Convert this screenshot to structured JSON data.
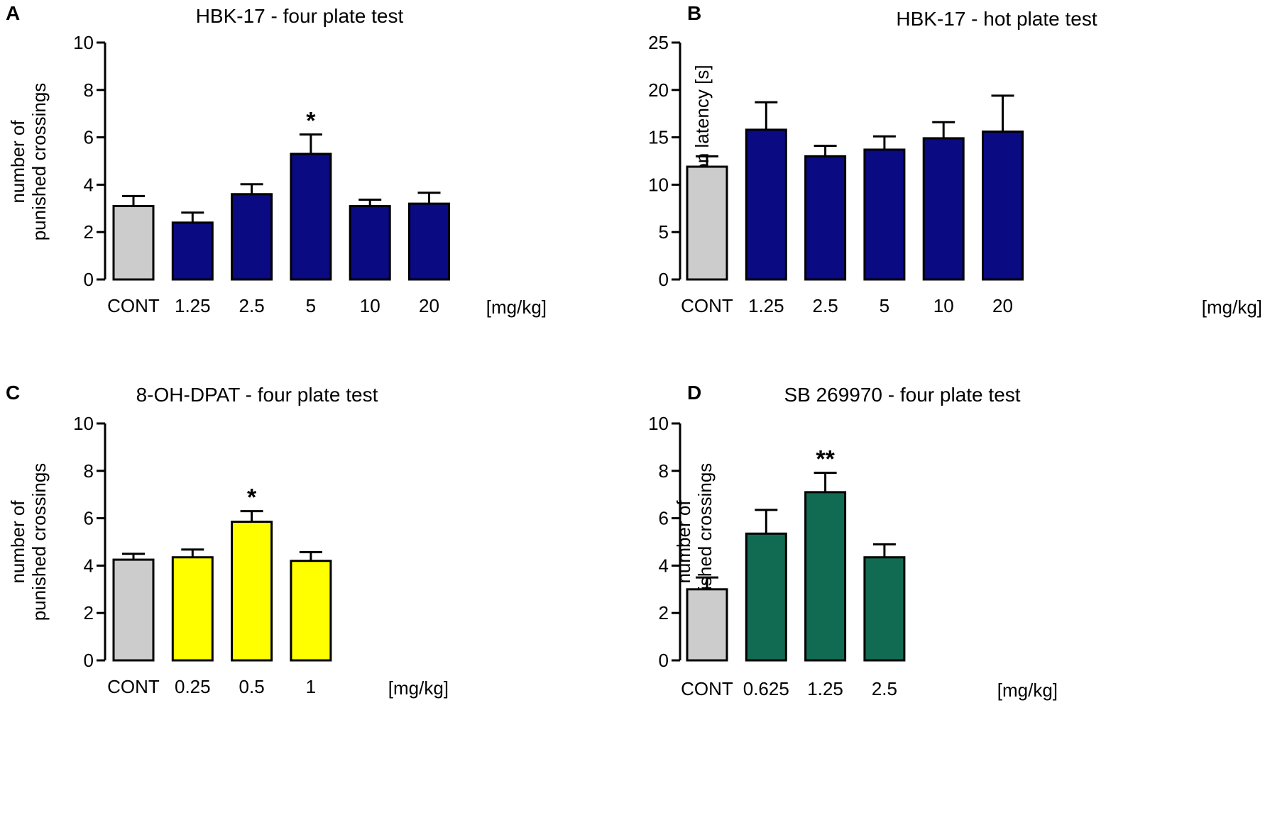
{
  "chart_data": [
    {
      "panel": "A",
      "type": "bar",
      "title": "HBK-17 - four plate test",
      "ylabel": [
        "number of",
        "punished crossings"
      ],
      "xunit": "[mg/kg]",
      "categories": [
        "CONT",
        "1.25",
        "2.5",
        "5",
        "10",
        "20"
      ],
      "values": [
        3.1,
        2.4,
        3.6,
        5.3,
        3.1,
        3.2
      ],
      "errors": [
        0.42,
        0.42,
        0.42,
        0.82,
        0.27,
        0.46
      ],
      "significance": [
        "",
        "",
        "",
        "*",
        "",
        ""
      ],
      "colors": [
        "#cccccc",
        "#0a0a82",
        "#0a0a82",
        "#0a0a82",
        "#0a0a82",
        "#0a0a82"
      ],
      "ylim": [
        0,
        10
      ],
      "yticks": [
        "0",
        "2",
        "4",
        "6",
        "8",
        "10"
      ]
    },
    {
      "panel": "B",
      "type": "bar",
      "title": "HBK-17 - hot plate test",
      "ylabel": [
        "pain reaction latency [s]"
      ],
      "xunit": "[mg/kg]",
      "categories": [
        "CONT",
        "1.25",
        "2.5",
        "5",
        "10",
        "20"
      ],
      "values": [
        11.9,
        15.8,
        13.0,
        13.7,
        14.9,
        15.6
      ],
      "errors": [
        1.1,
        2.9,
        1.1,
        1.4,
        1.7,
        3.8
      ],
      "significance": [
        "",
        "",
        "",
        "",
        "",
        ""
      ],
      "colors": [
        "#cccccc",
        "#0a0a82",
        "#0a0a82",
        "#0a0a82",
        "#0a0a82",
        "#0a0a82"
      ],
      "ylim": [
        0,
        25
      ],
      "yticks": [
        "0",
        "5",
        "10",
        "15",
        "20",
        "25"
      ]
    },
    {
      "panel": "C",
      "type": "bar",
      "title": "8-OH-DPAT - four plate test",
      "ylabel": [
        "number of",
        "punished crossings"
      ],
      "xunit": "[mg/kg]",
      "categories": [
        "CONT",
        "0.25",
        "0.5",
        "1"
      ],
      "values": [
        4.25,
        4.35,
        5.85,
        4.2
      ],
      "errors": [
        0.25,
        0.33,
        0.45,
        0.37
      ],
      "significance": [
        "",
        "",
        "*",
        ""
      ],
      "colors": [
        "#cccccc",
        "#ffff00",
        "#ffff00",
        "#ffff00"
      ],
      "ylim": [
        0,
        10
      ],
      "yticks": [
        "0",
        "2",
        "4",
        "6",
        "8",
        "10"
      ]
    },
    {
      "panel": "D",
      "type": "bar",
      "title": "SB 269970 - four plate test",
      "ylabel": [
        "number of",
        "punished crossings"
      ],
      "xunit": "[mg/kg]",
      "categories": [
        "CONT",
        "0.625",
        "1.25",
        "2.5"
      ],
      "values": [
        3.0,
        5.35,
        7.1,
        4.35
      ],
      "errors": [
        0.5,
        1.0,
        0.82,
        0.55
      ],
      "significance": [
        "",
        "",
        "**",
        ""
      ],
      "colors": [
        "#cccccc",
        "#116b52",
        "#116b52",
        "#116b52"
      ],
      "ylim": [
        0,
        10
      ],
      "yticks": [
        "0",
        "2",
        "4",
        "6",
        "8",
        "10"
      ]
    }
  ]
}
